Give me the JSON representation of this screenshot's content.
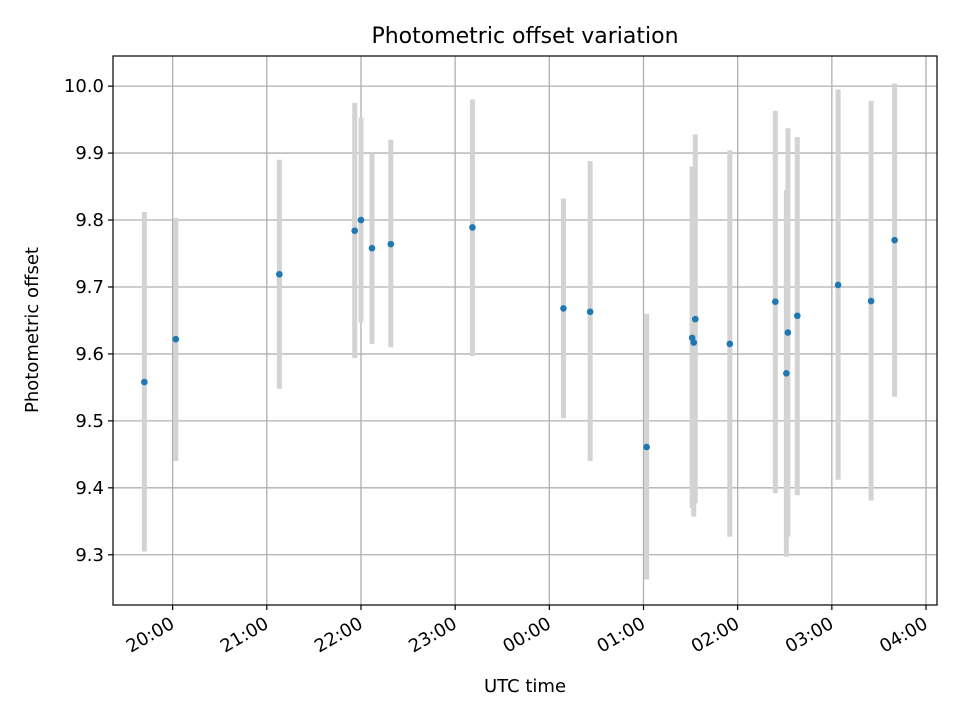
{
  "chart_data": {
    "type": "scatter",
    "title": "Photometric offset variation",
    "xlabel": "UTC time",
    "ylabel": "Photometric offset",
    "x_unit": "hours",
    "xlim": [
      "19:22",
      "04:07"
    ],
    "ylim": [
      9.225,
      10.045
    ],
    "grid": true,
    "x_ticks": [
      "20:00",
      "21:00",
      "22:00",
      "23:00",
      "00:00",
      "01:00",
      "02:00",
      "03:00",
      "04:00"
    ],
    "y_ticks": [
      "9.3",
      "9.4",
      "9.5",
      "9.6",
      "9.7",
      "9.8",
      "9.9",
      "10.0"
    ],
    "colors": {
      "point": "#1f77b4",
      "errorbar": "#d3d3d3",
      "grid": "#b0b0b0"
    },
    "series": [
      {
        "points": [
          {
            "t": "19:42",
            "y": 9.558,
            "lo": 9.305,
            "hi": 9.812
          },
          {
            "t": "20:02",
            "y": 9.622,
            "lo": 9.44,
            "hi": 9.803
          },
          {
            "t": "21:08",
            "y": 9.719,
            "lo": 9.548,
            "hi": 9.89
          },
          {
            "t": "21:56",
            "y": 9.784,
            "lo": 9.594,
            "hi": 9.975
          },
          {
            "t": "22:00",
            "y": 9.8,
            "lo": 9.647,
            "hi": 9.953
          },
          {
            "t": "22:07",
            "y": 9.758,
            "lo": 9.615,
            "hi": 9.9
          },
          {
            "t": "22:19",
            "y": 9.764,
            "lo": 9.61,
            "hi": 9.92
          },
          {
            "t": "23:11",
            "y": 9.789,
            "lo": 9.597,
            "hi": 9.98
          },
          {
            "t": "00:09",
            "y": 9.668,
            "lo": 9.504,
            "hi": 9.832
          },
          {
            "t": "00:26",
            "y": 9.663,
            "lo": 9.44,
            "hi": 9.888
          },
          {
            "t": "01:02",
            "y": 9.461,
            "lo": 9.263,
            "hi": 9.66
          },
          {
            "t": "01:31",
            "y": 9.624,
            "lo": 9.37,
            "hi": 9.88
          },
          {
            "t": "01:32",
            "y": 9.617,
            "lo": 9.357,
            "hi": 9.878
          },
          {
            "t": "01:33",
            "y": 9.652,
            "lo": 9.377,
            "hi": 9.928
          },
          {
            "t": "01:55",
            "y": 9.615,
            "lo": 9.327,
            "hi": 9.904
          },
          {
            "t": "02:24",
            "y": 9.678,
            "lo": 9.392,
            "hi": 9.963
          },
          {
            "t": "02:31",
            "y": 9.571,
            "lo": 9.297,
            "hi": 9.845
          },
          {
            "t": "02:32",
            "y": 9.632,
            "lo": 9.327,
            "hi": 9.937
          },
          {
            "t": "02:38",
            "y": 9.657,
            "lo": 9.389,
            "hi": 9.924
          },
          {
            "t": "03:04",
            "y": 9.703,
            "lo": 9.412,
            "hi": 9.995
          },
          {
            "t": "03:25",
            "y": 9.679,
            "lo": 9.381,
            "hi": 9.978
          },
          {
            "t": "03:40",
            "y": 9.77,
            "lo": 9.536,
            "hi": 10.004
          }
        ]
      }
    ]
  }
}
